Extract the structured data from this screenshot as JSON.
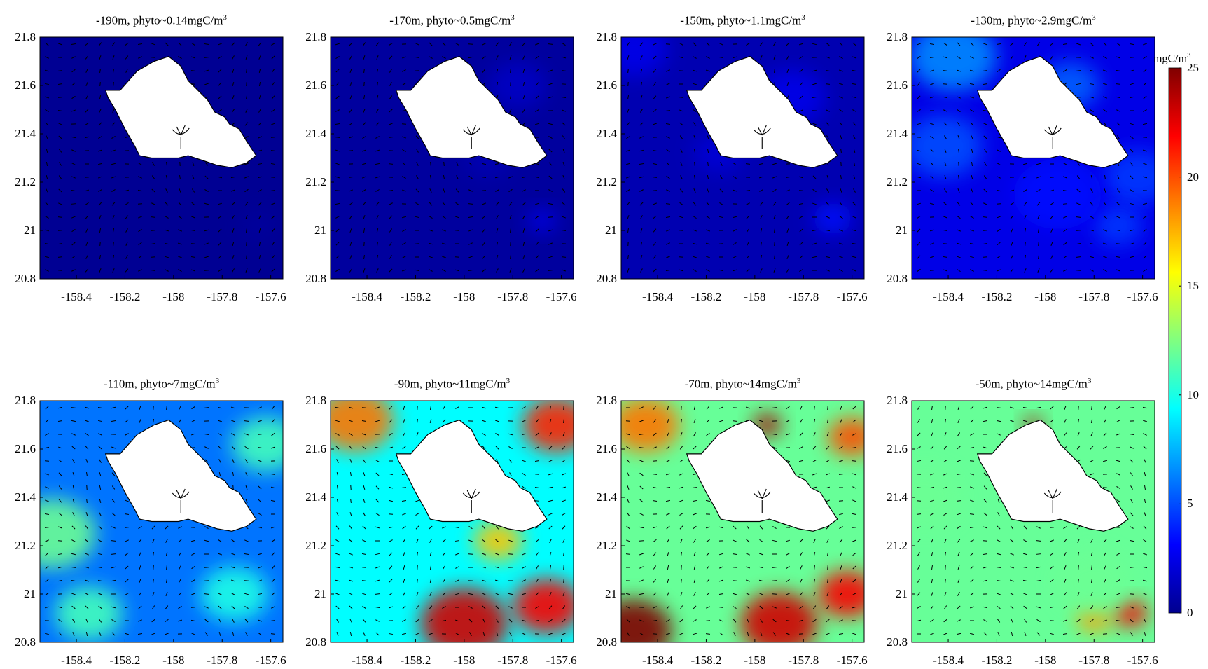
{
  "chart_data": {
    "type": "heatmap",
    "figure_description_note": "",
    "colormap": [
      "#00008f",
      "#0000ff",
      "#0080ff",
      "#00ffff",
      "#80ff80",
      "#ffff00",
      "#ff8000",
      "#ff0000",
      "#800000"
    ],
    "colorbar": {
      "label": "mgC/m",
      "label_sup": "3",
      "range": [
        0,
        25
      ],
      "ticks": [
        0,
        5,
        10,
        15,
        20,
        25
      ]
    },
    "x_ticks": [
      -158.4,
      -158.2,
      -158,
      -157.8,
      -157.6
    ],
    "x_tick_labels": [
      "-158.4",
      "-158.2",
      "-158",
      "-157.8",
      "-157.6"
    ],
    "y_ticks": [
      20.8,
      21,
      21.2,
      21.4,
      21.6,
      21.8
    ],
    "y_tick_labels": [
      "20.8",
      "21",
      "21.2",
      "21.4",
      "21.6",
      "21.8"
    ],
    "xlim": [
      -158.55,
      -157.55
    ],
    "ylim": [
      20.8,
      21.8
    ],
    "island_outline_lonlat": [
      [
        -158.28,
        21.58
      ],
      [
        -158.22,
        21.58
      ],
      [
        -158.15,
        21.66
      ],
      [
        -158.08,
        21.7
      ],
      [
        -158.02,
        21.72
      ],
      [
        -157.97,
        21.68
      ],
      [
        -157.94,
        21.62
      ],
      [
        -157.9,
        21.58
      ],
      [
        -157.86,
        21.54
      ],
      [
        -157.83,
        21.49
      ],
      [
        -157.79,
        21.47
      ],
      [
        -157.77,
        21.44
      ],
      [
        -157.73,
        21.42
      ],
      [
        -157.7,
        21.37
      ],
      [
        -157.66,
        21.31
      ],
      [
        -157.7,
        21.28
      ],
      [
        -157.76,
        21.26
      ],
      [
        -157.82,
        21.27
      ],
      [
        -157.88,
        21.29
      ],
      [
        -157.94,
        21.31
      ],
      [
        -157.98,
        21.3
      ],
      [
        -158.03,
        21.3
      ],
      [
        -158.09,
        21.3
      ],
      [
        -158.14,
        21.31
      ],
      [
        -158.16,
        21.35
      ],
      [
        -158.2,
        21.42
      ],
      [
        -158.24,
        21.5
      ],
      [
        -158.27,
        21.55
      ],
      [
        -158.28,
        21.58
      ]
    ],
    "panels": [
      {
        "depth_label": "-190m, phyto~0.14mgC/m",
        "sup": "3",
        "phyto_mean": 0.14,
        "hotspots": [
          [
            -157.65,
            21.02,
            0.08,
            0.4
          ]
        ]
      },
      {
        "depth_label": "-170m, phyto~0.5mgC/m",
        "sup": "3",
        "phyto_mean": 0.5,
        "hotspots": [
          [
            -157.68,
            21.04,
            0.06,
            2.5
          ],
          [
            -157.78,
            21.6,
            0.12,
            1.5
          ],
          [
            -157.9,
            21.3,
            0.1,
            1.0
          ]
        ]
      },
      {
        "depth_label": "-150m, phyto~1.1mgC/m",
        "sup": "3",
        "phyto_mean": 1.1,
        "hotspots": [
          [
            -157.68,
            21.05,
            0.08,
            3.5
          ],
          [
            -158.5,
            21.75,
            0.14,
            2.5
          ],
          [
            -157.85,
            21.55,
            0.14,
            2.5
          ],
          [
            -158.15,
            21.32,
            0.1,
            2.0
          ]
        ]
      },
      {
        "depth_label": "-130m, phyto~2.9mgC/m",
        "sup": "3",
        "phyto_mean": 2.9,
        "hotspots": [
          [
            -158.38,
            21.72,
            0.18,
            6.5
          ],
          [
            -158.42,
            21.35,
            0.16,
            5.0
          ],
          [
            -157.62,
            21.22,
            0.14,
            4.5
          ],
          [
            -157.7,
            21.02,
            0.1,
            4.5
          ],
          [
            -157.9,
            21.6,
            0.12,
            5.5
          ],
          [
            -157.95,
            21.15,
            0.18,
            3.5
          ]
        ]
      },
      {
        "depth_label": "-110m, phyto~7mgC/m",
        "sup": "3",
        "phyto_mean": 7,
        "hotspots": [
          [
            -158.5,
            21.25,
            0.18,
            12
          ],
          [
            -157.62,
            21.62,
            0.14,
            11
          ],
          [
            -158.35,
            20.92,
            0.14,
            11
          ],
          [
            -157.75,
            21.0,
            0.14,
            10
          ]
        ]
      },
      {
        "depth_label": "-90m, phyto~11mgC/m",
        "sup": "3",
        "phyto_mean": 11,
        "hotspots": [
          [
            -158.0,
            20.88,
            0.18,
            23
          ],
          [
            -157.66,
            20.95,
            0.14,
            22
          ],
          [
            -157.62,
            21.7,
            0.14,
            21
          ],
          [
            -158.45,
            21.72,
            0.16,
            19
          ],
          [
            -157.86,
            21.22,
            0.1,
            17
          ]
        ]
      },
      {
        "depth_label": "-70m, phyto~14mgC/m",
        "sup": "3",
        "phyto_mean": 14,
        "hotspots": [
          [
            -158.5,
            20.85,
            0.16,
            25
          ],
          [
            -157.9,
            20.88,
            0.16,
            23
          ],
          [
            -157.62,
            21.0,
            0.12,
            22
          ],
          [
            -157.95,
            21.7,
            0.06,
            24
          ],
          [
            -158.45,
            21.7,
            0.14,
            19
          ],
          [
            -157.6,
            21.65,
            0.1,
            20
          ]
        ]
      },
      {
        "depth_label": "-50m, phyto~14mgC/m",
        "sup": "3",
        "phyto_mean": 14,
        "hotspots": [
          [
            -157.65,
            20.92,
            0.07,
            22
          ],
          [
            -157.8,
            20.9,
            0.07,
            18
          ],
          [
            -158.05,
            21.7,
            0.04,
            24
          ],
          [
            -158.5,
            21.4,
            0.16,
            12
          ],
          [
            -157.8,
            21.05,
            0.16,
            12
          ]
        ]
      }
    ]
  }
}
